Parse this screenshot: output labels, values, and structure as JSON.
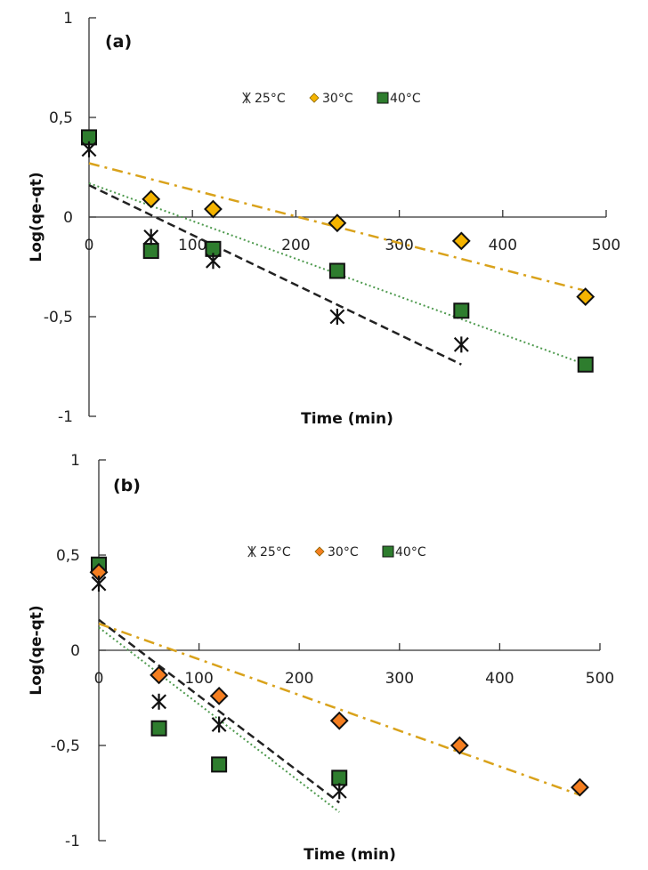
{
  "chart_data": [
    {
      "type": "scatter",
      "panel_label": "(a)",
      "xlabel": "Time (min)",
      "ylabel": "Log(qe-qt)",
      "xlim": [
        0,
        500
      ],
      "ylim": [
        -1,
        1
      ],
      "xticks": [
        0,
        100,
        200,
        300,
        400,
        500
      ],
      "xtick_labels": [
        "0",
        "100",
        "200",
        "300",
        "400",
        "500"
      ],
      "yticks": [
        1,
        0.5,
        0,
        -0.5,
        -1
      ],
      "ytick_labels": [
        "1",
        "0,5",
        "0",
        "-0,5",
        "-1"
      ],
      "grid": false,
      "legend_position": "top-center",
      "series": [
        {
          "name": "25°C",
          "marker": "asterisk",
          "color": "#111111",
          "x": [
            0,
            60,
            120,
            240,
            360
          ],
          "y": [
            0.34,
            -0.1,
            -0.22,
            -0.5,
            -0.64
          ],
          "fit": {
            "style": "dashed",
            "color": "#222222",
            "x": [
              0,
              360
            ],
            "y": [
              0.16,
              -0.74
            ]
          }
        },
        {
          "name": "30°C",
          "marker": "diamond",
          "color": "#F5B400",
          "x": [
            60,
            120,
            240,
            360,
            480
          ],
          "y": [
            0.09,
            0.04,
            -0.03,
            -0.12,
            -0.4
          ],
          "fit": {
            "style": "dash-dot",
            "color": "#D9A21B",
            "x": [
              0,
              480
            ],
            "y": [
              0.27,
              -0.37
            ]
          }
        },
        {
          "name": "40°C",
          "marker": "square",
          "color": "#2E7D2E",
          "x": [
            0,
            60,
            120,
            240,
            360,
            480
          ],
          "y": [
            0.4,
            -0.17,
            -0.16,
            -0.27,
            -0.47,
            -0.74
          ],
          "fit": {
            "style": "dotted",
            "color": "#4E9A4E",
            "x": [
              0,
              480
            ],
            "y": [
              0.17,
              -0.74
            ]
          }
        }
      ]
    },
    {
      "type": "scatter",
      "panel_label": "(b)",
      "xlabel": "Time (min)",
      "ylabel": "Log(qe-qt)",
      "xlim": [
        0,
        500
      ],
      "ylim": [
        -1,
        1
      ],
      "xticks": [
        0,
        100,
        200,
        300,
        400,
        500
      ],
      "xtick_labels": [
        "0",
        "100",
        "200",
        "300",
        "400",
        "500"
      ],
      "yticks": [
        1,
        0.5,
        0,
        -0.5,
        -1
      ],
      "ytick_labels": [
        "1",
        "0,5",
        "0",
        "-0,5",
        "-1"
      ],
      "grid": false,
      "legend_position": "top-center",
      "series": [
        {
          "name": "25°C",
          "marker": "asterisk",
          "color": "#111111",
          "x": [
            0,
            60,
            120,
            240
          ],
          "y": [
            0.35,
            -0.27,
            -0.39,
            -0.74
          ],
          "fit": {
            "style": "dashed",
            "color": "#222222",
            "x": [
              0,
              240
            ],
            "y": [
              0.16,
              -0.8
            ]
          }
        },
        {
          "name": "30°C",
          "marker": "diamond",
          "color": "#F47E20",
          "x": [
            0,
            60,
            120,
            240,
            360,
            480
          ],
          "y": [
            0.41,
            -0.13,
            -0.24,
            -0.37,
            -0.5,
            -0.72
          ],
          "fit": {
            "style": "dash-dot",
            "color": "#D9A21B",
            "x": [
              0,
              480
            ],
            "y": [
              0.14,
              -0.76
            ]
          }
        },
        {
          "name": "40°C",
          "marker": "square",
          "color": "#2E7D2E",
          "x": [
            0,
            60,
            120,
            240
          ],
          "y": [
            0.45,
            -0.41,
            -0.6,
            -0.67
          ],
          "fit": {
            "style": "dotted",
            "color": "#4E9A4E",
            "x": [
              0,
              240
            ],
            "y": [
              0.12,
              -0.85
            ]
          }
        }
      ]
    }
  ]
}
